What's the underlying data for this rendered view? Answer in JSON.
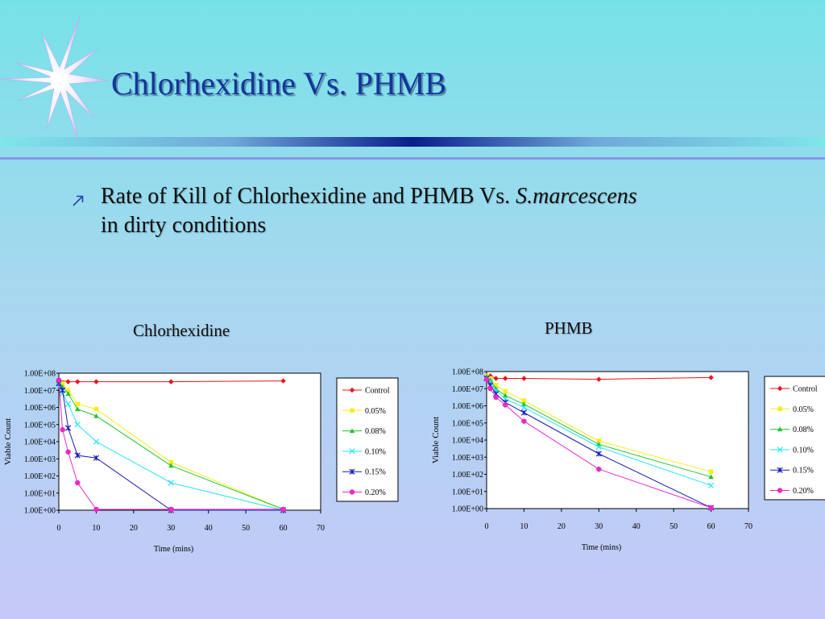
{
  "slide": {
    "title": "Chlorhexidine Vs. PHMB",
    "bullet": {
      "text": "Rate of Kill of Chlorhexidine and PHMB Vs. ",
      "organism": "S.marcescens",
      "text2": "in dirty conditions",
      "icon": "arrow-up-right-icon"
    },
    "colors": {
      "title": "#13369a",
      "bar_dark": "#0a1e8c",
      "bar_light": "#7fe6ea"
    }
  },
  "chart_data": [
    {
      "type": "line",
      "title": "Chlorhexidine",
      "xlabel": "Time (mins)",
      "ylabel": "Viable Count",
      "xlim": [
        0,
        70
      ],
      "xticks": [
        0,
        10,
        20,
        30,
        40,
        50,
        60,
        70
      ],
      "ylim": [
        0,
        8
      ],
      "yscale": "log10",
      "yticks": [
        "1.00E+00",
        "1.00E+01",
        "1.00E+02",
        "1.00E+03",
        "1.00E+04",
        "1.00E+05",
        "1.00E+06",
        "1.00E+07",
        "1.00E+08"
      ],
      "legend": "right",
      "series": [
        {
          "name": "Control",
          "color": "#e8141e",
          "marker": "diamond",
          "x": [
            0,
            2.5,
            5,
            10,
            30,
            60
          ],
          "y": [
            7.6,
            7.5,
            7.5,
            7.5,
            7.5,
            7.55
          ]
        },
        {
          "name": "0.05%",
          "color": "#f2ee20",
          "marker": "square",
          "x": [
            0,
            1,
            2.5,
            5,
            10,
            30,
            60
          ],
          "y": [
            7.6,
            7.4,
            7.0,
            6.2,
            5.9,
            2.8,
            0.05
          ]
        },
        {
          "name": "0.08%",
          "color": "#22c42a",
          "marker": "triangle",
          "x": [
            0,
            1,
            2.5,
            5,
            10,
            30,
            60
          ],
          "y": [
            7.5,
            7.2,
            6.8,
            5.9,
            5.5,
            2.6,
            0.05
          ]
        },
        {
          "name": "0.10%",
          "color": "#28e6f0",
          "marker": "x",
          "x": [
            0,
            1,
            2.5,
            5,
            10,
            30,
            60
          ],
          "y": [
            7.2,
            6.8,
            6.2,
            5.0,
            4.0,
            1.6,
            0.0
          ]
        },
        {
          "name": "0.15%",
          "color": "#1a1ab4",
          "marker": "star",
          "x": [
            0,
            1,
            2.5,
            5,
            10,
            30,
            60
          ],
          "y": [
            7.4,
            7.0,
            4.8,
            3.2,
            3.05,
            0.0,
            0.0
          ]
        },
        {
          "name": "0.20%",
          "color": "#ec28c8",
          "marker": "circle",
          "x": [
            0,
            1,
            2.5,
            5,
            10,
            30,
            60
          ],
          "y": [
            7.6,
            4.7,
            3.4,
            1.6,
            0.05,
            0.05,
            0.05
          ]
        }
      ]
    },
    {
      "type": "line",
      "title": "PHMB",
      "xlabel": "Time (mins)",
      "ylabel": "Viable Count",
      "xlim": [
        0,
        70
      ],
      "xticks": [
        0,
        10,
        20,
        30,
        40,
        50,
        60,
        70
      ],
      "ylim": [
        0,
        8
      ],
      "yscale": "log10",
      "yticks": [
        "1.00E+00",
        "1.00E+01",
        "1.00E+02",
        "1.00E+03",
        "1.00E+04",
        "1.00E+05",
        "1.00E+06",
        "1.00E+07",
        "1.00E+08"
      ],
      "legend": "right",
      "series": [
        {
          "name": "Control",
          "color": "#e8141e",
          "marker": "diamond",
          "x": [
            0,
            1,
            2.5,
            5,
            10,
            30,
            60
          ],
          "y": [
            7.8,
            7.75,
            7.6,
            7.6,
            7.6,
            7.55,
            7.65
          ]
        },
        {
          "name": "0.05%",
          "color": "#f2ee20",
          "marker": "square",
          "x": [
            0,
            1,
            2.5,
            5,
            10,
            30,
            60
          ],
          "y": [
            7.75,
            7.6,
            7.2,
            6.85,
            6.3,
            3.95,
            2.15
          ]
        },
        {
          "name": "0.08%",
          "color": "#22c42a",
          "marker": "triangle",
          "x": [
            0,
            1,
            2.5,
            5,
            10,
            30,
            60
          ],
          "y": [
            7.7,
            7.5,
            7.0,
            6.6,
            6.1,
            3.75,
            1.85
          ]
        },
        {
          "name": "0.10%",
          "color": "#28e6f0",
          "marker": "x",
          "x": [
            0,
            1,
            2.5,
            5,
            10,
            30,
            60
          ],
          "y": [
            7.65,
            7.4,
            6.9,
            6.4,
            5.9,
            3.6,
            1.35
          ]
        },
        {
          "name": "0.15%",
          "color": "#1a1ab4",
          "marker": "star",
          "x": [
            0,
            1,
            2.5,
            5,
            10,
            30,
            60
          ],
          "y": [
            7.6,
            7.2,
            6.7,
            6.2,
            5.6,
            3.2,
            0.05
          ]
        },
        {
          "name": "0.20%",
          "color": "#ec28c8",
          "marker": "circle",
          "x": [
            0,
            1,
            2.5,
            5,
            10,
            30,
            60
          ],
          "y": [
            7.55,
            7.0,
            6.5,
            6.05,
            5.1,
            2.3,
            0.05
          ]
        }
      ]
    }
  ]
}
